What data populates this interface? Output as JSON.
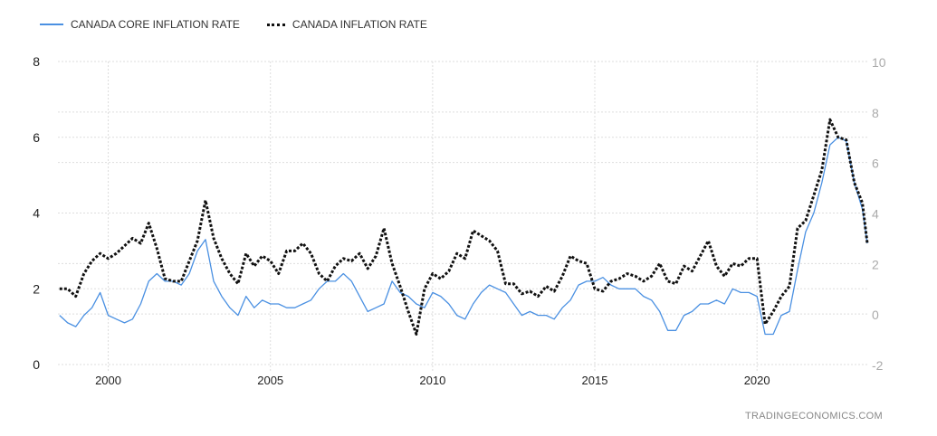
{
  "chart_data": {
    "type": "line",
    "title": "",
    "legend_position": "top-left",
    "grid": true,
    "x_ticks": [
      "2000",
      "2005",
      "2010",
      "2015",
      "2020"
    ],
    "x_tick_values": [
      2000,
      2005,
      2010,
      2015,
      2020
    ],
    "xlim": [
      1998.45,
      2023.4
    ],
    "left_axis": {
      "ticks": [
        "0",
        "2",
        "4",
        "6",
        "8"
      ],
      "values": [
        0,
        2,
        4,
        6,
        8
      ],
      "ylim": [
        0,
        8
      ]
    },
    "right_axis": {
      "ticks": [
        "-2",
        "0",
        "2",
        "4",
        "6",
        "8",
        "10"
      ],
      "values": [
        -2,
        0,
        2,
        4,
        6,
        8,
        10
      ],
      "ylim": [
        -2,
        10
      ]
    },
    "series": [
      {
        "name": "CANADA CORE INFLATION RATE",
        "axis": "left",
        "color": "#4a90e2",
        "style": "solid",
        "x": [
          1998.5,
          1998.75,
          1999,
          1999.25,
          1999.5,
          1999.75,
          2000,
          2000.25,
          2000.5,
          2000.75,
          2001,
          2001.25,
          2001.5,
          2001.75,
          2002,
          2002.25,
          2002.5,
          2002.75,
          2003,
          2003.25,
          2003.5,
          2003.75,
          2004,
          2004.25,
          2004.5,
          2004.75,
          2005,
          2005.25,
          2005.5,
          2005.75,
          2006,
          2006.25,
          2006.5,
          2006.75,
          2007,
          2007.25,
          2007.5,
          2007.75,
          2008,
          2008.25,
          2008.5,
          2008.75,
          2009,
          2009.25,
          2009.5,
          2009.75,
          2010,
          2010.25,
          2010.5,
          2010.75,
          2011,
          2011.25,
          2011.5,
          2011.75,
          2012,
          2012.25,
          2012.5,
          2012.75,
          2013,
          2013.25,
          2013.5,
          2013.75,
          2014,
          2014.25,
          2014.5,
          2014.75,
          2015,
          2015.25,
          2015.5,
          2015.75,
          2016,
          2016.25,
          2016.5,
          2016.75,
          2017,
          2017.25,
          2017.5,
          2017.75,
          2018,
          2018.25,
          2018.5,
          2018.75,
          2019,
          2019.25,
          2019.5,
          2019.75,
          2020,
          2020.25,
          2020.5,
          2020.75,
          2021,
          2021.25,
          2021.5,
          2021.75,
          2022,
          2022.25,
          2022.5,
          2022.75,
          2023,
          2023.25,
          2023.4
        ],
        "values": [
          1.3,
          1.1,
          1.0,
          1.3,
          1.5,
          1.9,
          1.3,
          1.2,
          1.1,
          1.2,
          1.6,
          2.2,
          2.4,
          2.2,
          2.2,
          2.1,
          2.4,
          3.0,
          3.3,
          2.2,
          1.8,
          1.5,
          1.3,
          1.8,
          1.5,
          1.7,
          1.6,
          1.6,
          1.5,
          1.5,
          1.6,
          1.7,
          2.0,
          2.2,
          2.2,
          2.4,
          2.2,
          1.8,
          1.4,
          1.5,
          1.6,
          2.2,
          1.9,
          1.8,
          1.6,
          1.5,
          1.9,
          1.8,
          1.6,
          1.3,
          1.2,
          1.6,
          1.9,
          2.1,
          2.0,
          1.9,
          1.6,
          1.3,
          1.4,
          1.3,
          1.3,
          1.2,
          1.5,
          1.7,
          2.1,
          2.2,
          2.2,
          2.3,
          2.1,
          2.0,
          2.0,
          2.0,
          1.8,
          1.7,
          1.4,
          0.9,
          0.9,
          1.3,
          1.4,
          1.6,
          1.6,
          1.7,
          1.6,
          2.0,
          1.9,
          1.9,
          1.8,
          0.8,
          0.8,
          1.3,
          1.4,
          2.5,
          3.5,
          4.0,
          4.8,
          5.8,
          6.0,
          5.9,
          4.8,
          4.1,
          3.2
        ]
      },
      {
        "name": "CANADA INFLATION RATE",
        "axis": "right",
        "color": "#111111",
        "style": "dotted",
        "x": [
          1998.5,
          1998.75,
          1999,
          1999.25,
          1999.5,
          1999.75,
          2000,
          2000.25,
          2000.5,
          2000.75,
          2001,
          2001.25,
          2001.5,
          2001.75,
          2002,
          2002.25,
          2002.5,
          2002.75,
          2003,
          2003.25,
          2003.5,
          2003.75,
          2004,
          2004.25,
          2004.5,
          2004.75,
          2005,
          2005.25,
          2005.5,
          2005.75,
          2006,
          2006.25,
          2006.5,
          2006.75,
          2007,
          2007.25,
          2007.5,
          2007.75,
          2008,
          2008.25,
          2008.5,
          2008.75,
          2009,
          2009.25,
          2009.5,
          2009.75,
          2010,
          2010.25,
          2010.5,
          2010.75,
          2011,
          2011.25,
          2011.5,
          2011.75,
          2012,
          2012.25,
          2012.5,
          2012.75,
          2013,
          2013.25,
          2013.5,
          2013.75,
          2014,
          2014.25,
          2014.5,
          2014.75,
          2015,
          2015.25,
          2015.5,
          2015.75,
          2016,
          2016.25,
          2016.5,
          2016.75,
          2017,
          2017.25,
          2017.5,
          2017.75,
          2018,
          2018.25,
          2018.5,
          2018.75,
          2019,
          2019.25,
          2019.5,
          2019.75,
          2020,
          2020.25,
          2020.5,
          2020.75,
          2021,
          2021.25,
          2021.5,
          2021.75,
          2022,
          2022.25,
          2022.5,
          2022.75,
          2023,
          2023.25,
          2023.4
        ],
        "values": [
          1.0,
          1.0,
          0.7,
          1.6,
          2.1,
          2.4,
          2.2,
          2.4,
          2.7,
          3.0,
          2.8,
          3.6,
          2.6,
          1.4,
          1.3,
          1.3,
          2.1,
          2.9,
          4.5,
          3.0,
          2.2,
          1.6,
          1.2,
          2.4,
          1.9,
          2.3,
          2.1,
          1.6,
          2.5,
          2.5,
          2.8,
          2.4,
          1.6,
          1.3,
          1.9,
          2.2,
          2.1,
          2.4,
          1.8,
          2.3,
          3.4,
          2.0,
          1.1,
          0.1,
          -0.8,
          1.0,
          1.6,
          1.4,
          1.7,
          2.4,
          2.2,
          3.3,
          3.1,
          2.9,
          2.5,
          1.2,
          1.2,
          0.8,
          0.9,
          0.7,
          1.1,
          0.9,
          1.5,
          2.3,
          2.1,
          2.0,
          1.0,
          0.9,
          1.3,
          1.4,
          1.6,
          1.5,
          1.3,
          1.5,
          2.0,
          1.3,
          1.2,
          1.9,
          1.7,
          2.3,
          2.9,
          1.9,
          1.5,
          2.0,
          1.9,
          2.2,
          2.2,
          -0.4,
          0.1,
          0.7,
          1.1,
          3.4,
          3.7,
          4.7,
          5.7,
          7.7,
          7.0,
          6.9,
          5.2,
          4.4,
          2.8
        ]
      }
    ]
  },
  "credit": "TRADINGECONOMICS.COM"
}
